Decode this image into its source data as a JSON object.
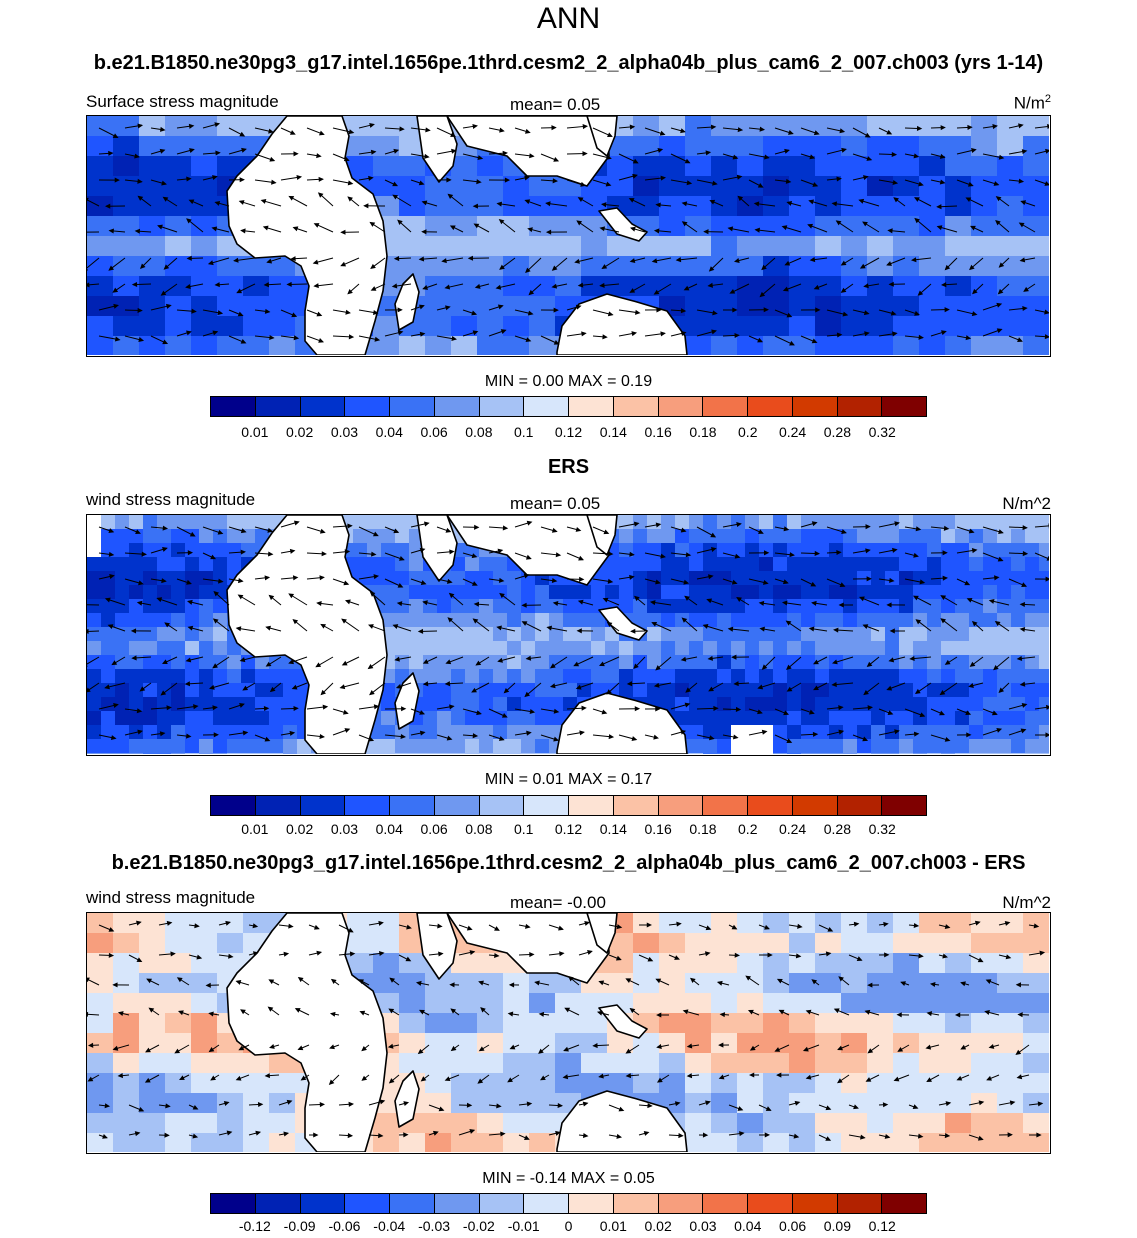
{
  "figure_title": "ANN",
  "colorbar_abs": [
    "#00008b",
    "#0022b4",
    "#0033cc",
    "#1f55ff",
    "#3a72f5",
    "#6f98f0",
    "#a6c2f5",
    "#d7e6fb",
    "#fde3d4",
    "#fbc2a6",
    "#f79e7d",
    "#f27349",
    "#e94c1c",
    "#d23a00",
    "#b22200",
    "#7f0000"
  ],
  "colorbar_diff": [
    "#00008b",
    "#0022b4",
    "#0033cc",
    "#1f55ff",
    "#3a72f5",
    "#6f98f0",
    "#a6c2f5",
    "#d7e6fb",
    "#fde3d4",
    "#fbc2a6",
    "#f79e7d",
    "#f27349",
    "#e94c1c",
    "#d23a00",
    "#b22200",
    "#7f0000"
  ],
  "chart_data": [
    {
      "type": "heatmap",
      "title": "b.e21.B1850.ne30pg3_g17.intel.1656pe.1thrd.cesm2_2_alpha04b_plus_cam6_2_007.ch003 (yrs 1-14)",
      "left_label": "Surface stress magnitude",
      "mean_label": "mean=   0.05",
      "units_base": "N/m",
      "units_sup": "2",
      "minmax": "MIN =   0.00 MAX =   0.19",
      "levels": [
        "0.01",
        "0.02",
        "0.03",
        "0.04",
        "0.06",
        "0.08",
        "0.1",
        "0.12",
        "0.14",
        "0.16",
        "0.18",
        "0.2",
        "0.24",
        "0.28",
        "0.32"
      ]
    },
    {
      "type": "heatmap",
      "title": "ERS",
      "left_label": "wind stress magnitude",
      "mean_label": "mean=   0.05",
      "units": "N/m^2",
      "minmax": "MIN =   0.01 MAX =   0.17",
      "levels": [
        "0.01",
        "0.02",
        "0.03",
        "0.04",
        "0.06",
        "0.08",
        "0.1",
        "0.12",
        "0.14",
        "0.16",
        "0.18",
        "0.2",
        "0.24",
        "0.28",
        "0.32"
      ]
    },
    {
      "type": "heatmap",
      "title": "b.e21.B1850.ne30pg3_g17.intel.1656pe.1thrd.cesm2_2_alpha04b_plus_cam6_2_007.ch003 - ERS",
      "left_label": "wind stress magnitude",
      "mean_label": "mean=  -0.00",
      "units": "N/m^2",
      "minmax": "MIN =  -0.14 MAX =   0.05",
      "levels": [
        "-0.12",
        "-0.09",
        "-0.06",
        "-0.04",
        "-0.03",
        "-0.02",
        "-0.01",
        "0",
        "0.01",
        "0.02",
        "0.03",
        "0.04",
        "0.06",
        "0.09",
        "0.12"
      ]
    }
  ]
}
